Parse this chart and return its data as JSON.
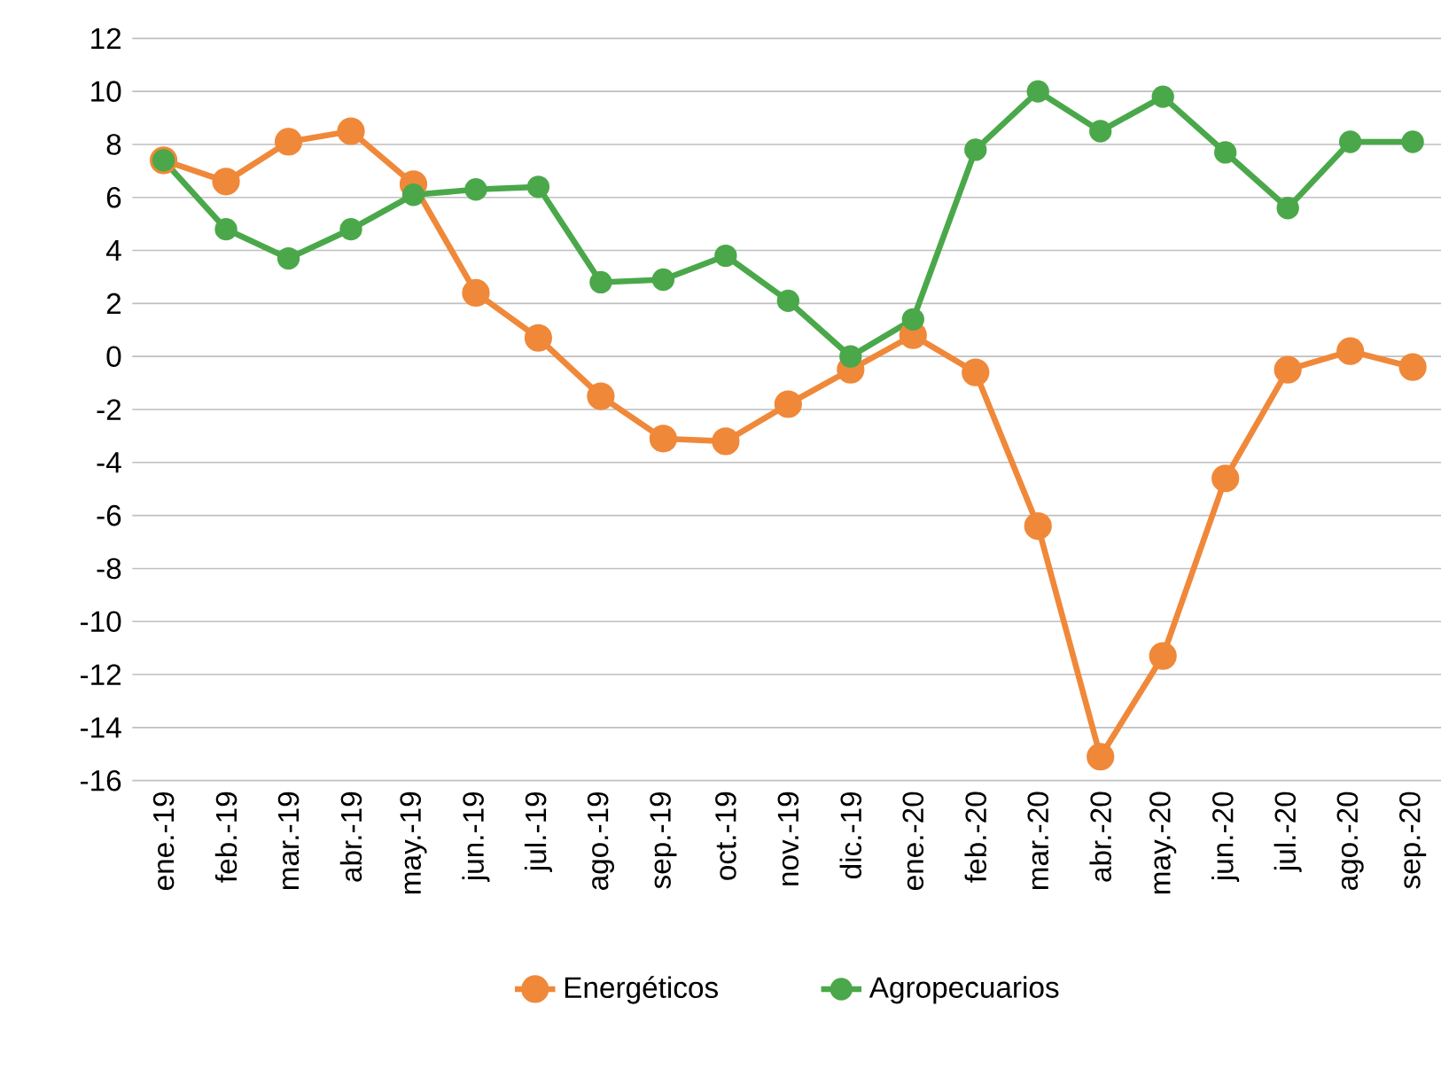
{
  "chart_data": {
    "type": "line",
    "categories": [
      "ene.-19",
      "feb.-19",
      "mar.-19",
      "abr.-19",
      "may.-19",
      "jun.-19",
      "jul.-19",
      "ago.-19",
      "sep.-19",
      "oct.-19",
      "nov.-19",
      "dic.-19",
      "ene.-20",
      "feb.-20",
      "mar.-20",
      "abr.-20",
      "may.-20",
      "jun.-20",
      "jul.-20",
      "ago.-20",
      "sep.-20"
    ],
    "series": [
      {
        "name": "Energéticos",
        "color": "#f0883a",
        "values": [
          7.4,
          6.6,
          8.1,
          8.5,
          6.5,
          2.4,
          0.7,
          -1.5,
          -3.1,
          -3.2,
          -1.8,
          -0.5,
          0.8,
          -0.6,
          -6.4,
          -15.1,
          -11.3,
          -4.6,
          -0.5,
          0.2,
          -0.4
        ]
      },
      {
        "name": "Agropecuarios",
        "color": "#4aa84a",
        "values": [
          7.4,
          4.8,
          3.7,
          4.8,
          6.1,
          6.3,
          6.4,
          2.8,
          2.9,
          3.8,
          2.1,
          0.0,
          1.4,
          7.8,
          10.0,
          8.5,
          9.8,
          7.7,
          5.6,
          8.1,
          8.1
        ]
      }
    ],
    "ylim": [
      -16,
      12
    ],
    "yticks": [
      -16,
      -14,
      -12,
      -10,
      -8,
      -6,
      -4,
      -2,
      0,
      2,
      4,
      6,
      8,
      10,
      12
    ],
    "grid": "y",
    "legend": "bottom",
    "marker": "circle",
    "line_style": "solid"
  }
}
